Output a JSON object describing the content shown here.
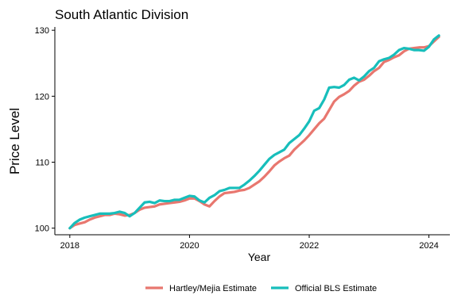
{
  "chart_data": {
    "type": "line",
    "title": "South Atlantic Division",
    "xlabel": "Year",
    "ylabel": "Price Level",
    "xlim": [
      2017.75,
      2024.35
    ],
    "ylim": [
      99,
      130.5
    ],
    "x_ticks": [
      2018,
      2020,
      2022,
      2024
    ],
    "y_ticks": [
      100,
      110,
      120,
      130
    ],
    "grid": false,
    "legend_position": "bottom",
    "x": [
      2018.0,
      2018.083,
      2018.167,
      2018.25,
      2018.333,
      2018.417,
      2018.5,
      2018.583,
      2018.667,
      2018.75,
      2018.833,
      2018.917,
      2019.0,
      2019.083,
      2019.167,
      2019.25,
      2019.333,
      2019.417,
      2019.5,
      2019.583,
      2019.667,
      2019.75,
      2019.833,
      2019.917,
      2020.0,
      2020.083,
      2020.167,
      2020.25,
      2020.333,
      2020.417,
      2020.5,
      2020.583,
      2020.667,
      2020.75,
      2020.833,
      2020.917,
      2021.0,
      2021.083,
      2021.167,
      2021.25,
      2021.333,
      2021.417,
      2021.5,
      2021.583,
      2021.667,
      2021.75,
      2021.833,
      2021.917,
      2022.0,
      2022.083,
      2022.167,
      2022.25,
      2022.333,
      2022.417,
      2022.5,
      2022.583,
      2022.667,
      2022.75,
      2022.833,
      2022.917,
      2023.0,
      2023.083,
      2023.167,
      2023.25,
      2023.333,
      2023.417,
      2023.5,
      2023.583,
      2023.667,
      2023.75,
      2023.833,
      2023.917,
      2024.0,
      2024.083,
      2024.167
    ],
    "series": [
      {
        "name": "Hartley/Mejia Estimate",
        "color": "#E8776F",
        "values": [
          100.0,
          100.5,
          100.7,
          100.9,
          101.3,
          101.6,
          101.8,
          102.0,
          102.0,
          102.2,
          102.1,
          101.9,
          102.0,
          102.3,
          102.8,
          103.1,
          103.2,
          103.3,
          103.6,
          103.7,
          103.8,
          103.9,
          104.0,
          104.2,
          104.5,
          104.5,
          104.1,
          103.6,
          103.3,
          104.1,
          104.8,
          105.3,
          105.4,
          105.5,
          105.7,
          105.8,
          106.1,
          106.6,
          107.1,
          107.8,
          108.6,
          109.5,
          110.1,
          110.6,
          111.0,
          111.9,
          112.6,
          113.3,
          114.1,
          115.0,
          115.9,
          116.6,
          117.9,
          119.2,
          119.9,
          120.3,
          120.8,
          121.6,
          122.2,
          122.5,
          123.1,
          123.8,
          124.3,
          125.2,
          125.5,
          125.9,
          126.2,
          126.8,
          127.2,
          127.3,
          127.4,
          127.4,
          127.6,
          128.3,
          129.0
        ]
      },
      {
        "name": "Official BLS Estimate",
        "color": "#17BEBB",
        "values": [
          100.0,
          100.8,
          101.3,
          101.6,
          101.8,
          102.0,
          102.2,
          102.2,
          102.2,
          102.3,
          102.5,
          102.3,
          101.8,
          102.3,
          103.1,
          103.9,
          104.0,
          103.8,
          104.2,
          104.1,
          104.1,
          104.3,
          104.3,
          104.6,
          104.9,
          104.8,
          104.2,
          103.9,
          104.6,
          105.0,
          105.6,
          105.8,
          106.1,
          106.1,
          106.1,
          106.6,
          107.2,
          107.9,
          108.7,
          109.6,
          110.5,
          111.1,
          111.5,
          111.9,
          112.9,
          113.5,
          114.1,
          115.1,
          116.2,
          117.8,
          118.2,
          119.5,
          121.3,
          121.4,
          121.3,
          121.7,
          122.5,
          122.8,
          122.4,
          123.0,
          123.8,
          124.3,
          125.3,
          125.6,
          125.8,
          126.3,
          127.0,
          127.3,
          127.2,
          127.0,
          127.0,
          126.9,
          127.5,
          128.6,
          129.2
        ]
      }
    ]
  }
}
